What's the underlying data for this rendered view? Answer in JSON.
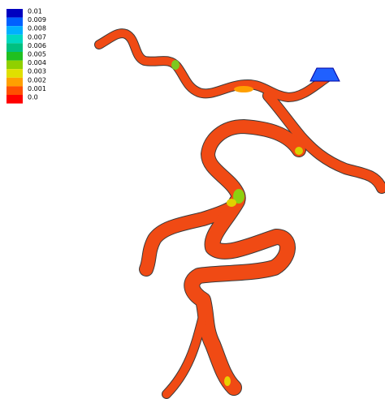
{
  "legend": {
    "items": [
      {
        "label": "0.01",
        "color": "#0000c0"
      },
      {
        "label": "0.009",
        "color": "#0060ff"
      },
      {
        "label": "0.008",
        "color": "#00b0ff"
      },
      {
        "label": "0.007",
        "color": "#00d8c0"
      },
      {
        "label": "0.006",
        "color": "#00c080"
      },
      {
        "label": "0.005",
        "color": "#20c020"
      },
      {
        "label": "0.004",
        "color": "#90d000"
      },
      {
        "label": "0.003",
        "color": "#e0e000"
      },
      {
        "label": "0.002",
        "color": "#ffa000"
      },
      {
        "label": "0.001",
        "color": "#ff5000"
      },
      {
        "label": "0.0",
        "color": "#ff0000"
      }
    ]
  }
}
